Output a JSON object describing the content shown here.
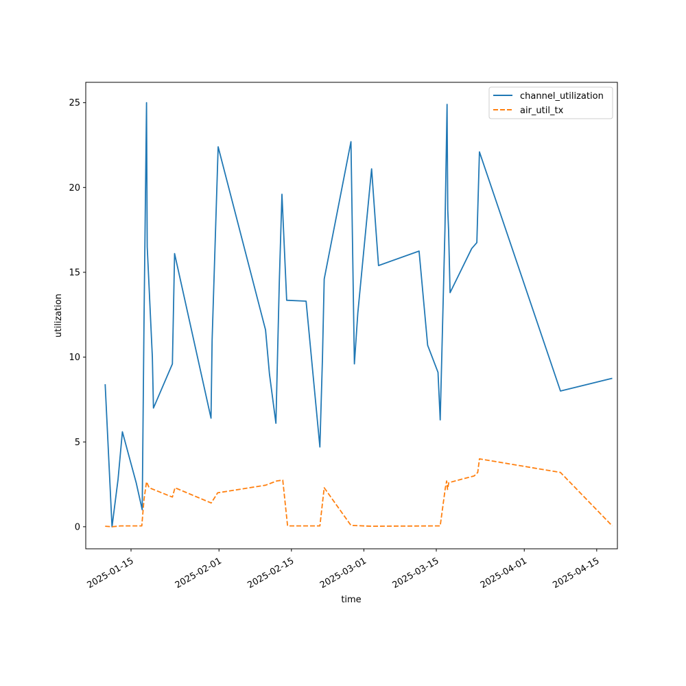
{
  "chart_data": {
    "type": "line",
    "title": "",
    "xlabel": "time",
    "ylabel": "utilization",
    "xlim": [
      "2025-01-06T06:00",
      "2025-04-19T00:00"
    ],
    "ylim": [
      -1.3,
      26.2
    ],
    "x_tick_labels": [
      "2025-01-15",
      "2025-02-01",
      "2025-02-15",
      "2025-03-01",
      "2025-03-15",
      "2025-04-01",
      "2025-04-15"
    ],
    "y_ticks": [
      0,
      5,
      10,
      15,
      20,
      25
    ],
    "grid": false,
    "legend_position": "top-right",
    "series": [
      {
        "name": "channel_utilization",
        "color": "#1f77b4",
        "dash": "solid",
        "points": [
          [
            "2025-01-10T00:00",
            8.4
          ],
          [
            "2025-01-11T08:00",
            0.0
          ],
          [
            "2025-01-12T12:00",
            2.8
          ],
          [
            "2025-01-13T08:00",
            5.6
          ],
          [
            "2025-01-16T00:00",
            2.6
          ],
          [
            "2025-01-17T04:00",
            1.0
          ],
          [
            "2025-01-17T12:00",
            12.0
          ],
          [
            "2025-01-18T00:00",
            25.0
          ],
          [
            "2025-01-18T03:00",
            16.5
          ],
          [
            "2025-01-19T03:00",
            10.0
          ],
          [
            "2025-01-19T08:00",
            7.0
          ],
          [
            "2025-01-23T00:00",
            9.6
          ],
          [
            "2025-01-23T10:00",
            16.1
          ],
          [
            "2025-01-30T11:00",
            6.4
          ],
          [
            "2025-01-30T16:00",
            11.0
          ],
          [
            "2025-01-31T20:00",
            22.4
          ],
          [
            "2025-02-10T00:00",
            11.6
          ],
          [
            "2025-02-10T18:00",
            9.0
          ],
          [
            "2025-02-12T00:00",
            6.1
          ],
          [
            "2025-02-12T16:00",
            14.5
          ],
          [
            "2025-02-13T04:00",
            19.6
          ],
          [
            "2025-02-14T02:00",
            13.35
          ],
          [
            "2025-02-17T20:00",
            13.3
          ],
          [
            "2025-02-20T12:00",
            4.7
          ],
          [
            "2025-02-21T00:00",
            10.0
          ],
          [
            "2025-02-21T08:00",
            14.6
          ],
          [
            "2025-02-26T12:00",
            22.7
          ],
          [
            "2025-02-27T04:00",
            9.6
          ],
          [
            "2025-02-27T20:00",
            12.6
          ],
          [
            "2025-03-02T12:00",
            21.1
          ],
          [
            "2025-03-03T08:00",
            17.5
          ],
          [
            "2025-03-03T20:00",
            15.4
          ],
          [
            "2025-03-11T16:00",
            16.25
          ],
          [
            "2025-03-13T08:00",
            10.7
          ],
          [
            "2025-03-15T08:00",
            9.1
          ],
          [
            "2025-03-15T18:00",
            6.3
          ],
          [
            "2025-03-16T16:00",
            17.5
          ],
          [
            "2025-03-17T02:00",
            24.9
          ],
          [
            "2025-03-17T05:00",
            18.7
          ],
          [
            "2025-03-17T09:00",
            17.5
          ],
          [
            "2025-03-17T16:00",
            13.8
          ],
          [
            "2025-03-21T20:00",
            16.4
          ],
          [
            "2025-03-22T20:00",
            16.75
          ],
          [
            "2025-03-23T08:00",
            22.1
          ],
          [
            "2025-04-08T00:00",
            8.0
          ],
          [
            "2025-04-18T00:00",
            8.75
          ]
        ]
      },
      {
        "name": "air_util_tx",
        "color": "#ff7f0e",
        "dash": "dashed",
        "points": [
          [
            "2025-01-10T00:00",
            0.03
          ],
          [
            "2025-01-11T08:00",
            0.0
          ],
          [
            "2025-01-13T00:00",
            0.05
          ],
          [
            "2025-01-17T02:00",
            0.05
          ],
          [
            "2025-01-17T12:00",
            1.6
          ],
          [
            "2025-01-18T00:00",
            2.65
          ],
          [
            "2025-01-18T12:00",
            2.3
          ],
          [
            "2025-01-23T00:00",
            1.75
          ],
          [
            "2025-01-23T12:00",
            2.3
          ],
          [
            "2025-01-30T12:00",
            1.4
          ],
          [
            "2025-01-31T18:00",
            2.0
          ],
          [
            "2025-02-10T00:00",
            2.45
          ],
          [
            "2025-02-12T04:00",
            2.7
          ],
          [
            "2025-02-13T08:00",
            2.75
          ],
          [
            "2025-02-14T06:00",
            0.05
          ],
          [
            "2025-02-20T12:00",
            0.05
          ],
          [
            "2025-02-21T08:00",
            2.3
          ],
          [
            "2025-02-26T12:00",
            0.08
          ],
          [
            "2025-03-02T12:00",
            0.03
          ],
          [
            "2025-03-15T18:00",
            0.05
          ],
          [
            "2025-03-16T18:00",
            2.3
          ],
          [
            "2025-03-17T00:00",
            2.7
          ],
          [
            "2025-03-17T04:00",
            2.2
          ],
          [
            "2025-03-17T10:00",
            2.6
          ],
          [
            "2025-03-22T08:00",
            3.0
          ],
          [
            "2025-03-23T00:00",
            3.2
          ],
          [
            "2025-03-23T08:00",
            4.0
          ],
          [
            "2025-04-08T00:00",
            3.2
          ],
          [
            "2025-04-18T00:00",
            0.05
          ]
        ]
      }
    ]
  }
}
